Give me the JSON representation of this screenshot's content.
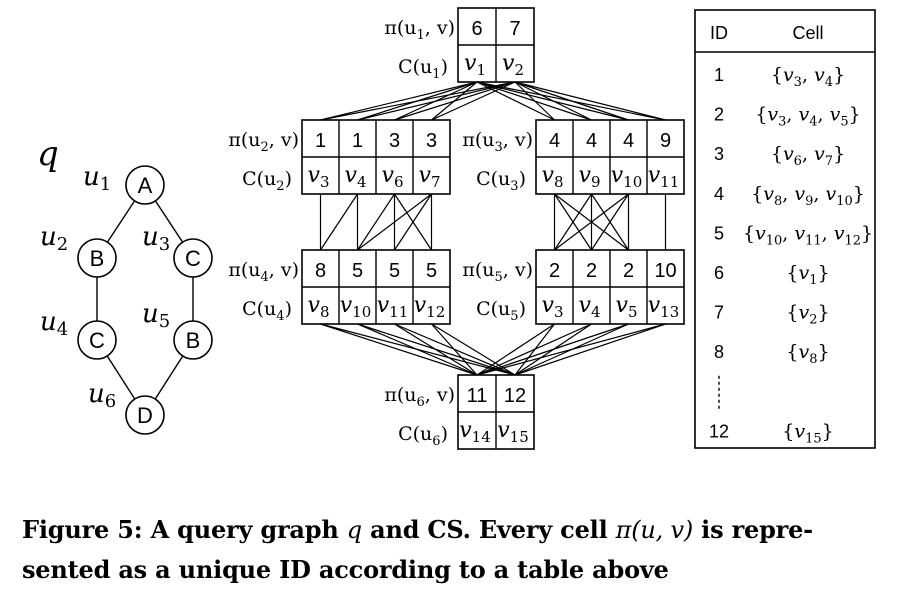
{
  "query_graph": {
    "label": "q",
    "vertices": [
      {
        "id": "u1",
        "name": "u",
        "sub": "1",
        "label": "A"
      },
      {
        "id": "u2",
        "name": "u",
        "sub": "2",
        "label": "B"
      },
      {
        "id": "u3",
        "name": "u",
        "sub": "3",
        "label": "C"
      },
      {
        "id": "u4",
        "name": "u",
        "sub": "4",
        "label": "C"
      },
      {
        "id": "u5",
        "name": "u",
        "sub": "5",
        "label": "B"
      },
      {
        "id": "u6",
        "name": "u",
        "sub": "6",
        "label": "D"
      }
    ],
    "edges": [
      [
        "u1",
        "u2"
      ],
      [
        "u1",
        "u3"
      ],
      [
        "u2",
        "u4"
      ],
      [
        "u3",
        "u5"
      ],
      [
        "u4",
        "u6"
      ],
      [
        "u5",
        "u6"
      ]
    ]
  },
  "cs": {
    "groups": [
      {
        "id": "u1",
        "pi_label": "π(u",
        "pi_sub": "1",
        "pi_end": ", v)",
        "c_label": "C(u",
        "c_sub": "1",
        "c_end": ")",
        "ids": [
          "6",
          "7"
        ],
        "cands": [
          [
            "v",
            "1"
          ],
          [
            "v",
            "2"
          ]
        ]
      },
      {
        "id": "u2",
        "pi_label": "π(u",
        "pi_sub": "2",
        "pi_end": ", v)",
        "c_label": "C(u",
        "c_sub": "2",
        "c_end": ")",
        "ids": [
          "1",
          "1",
          "3",
          "3"
        ],
        "cands": [
          [
            "v",
            "3"
          ],
          [
            "v",
            "4"
          ],
          [
            "v",
            "6"
          ],
          [
            "v",
            "7"
          ]
        ]
      },
      {
        "id": "u3",
        "pi_label": "π(u",
        "pi_sub": "3",
        "pi_end": ", v)",
        "c_label": "C(u",
        "c_sub": "3",
        "c_end": ")",
        "ids": [
          "4",
          "4",
          "4",
          "9"
        ],
        "cands": [
          [
            "v",
            "8"
          ],
          [
            "v",
            "9"
          ],
          [
            "v",
            "10"
          ],
          [
            "v",
            "11"
          ]
        ]
      },
      {
        "id": "u4",
        "pi_label": "π(u",
        "pi_sub": "4",
        "pi_end": ", v)",
        "c_label": "C(u",
        "c_sub": "4",
        "c_end": ")",
        "ids": [
          "8",
          "5",
          "5",
          "5"
        ],
        "cands": [
          [
            "v",
            "8"
          ],
          [
            "v",
            "10"
          ],
          [
            "v",
            "11"
          ],
          [
            "v",
            "12"
          ]
        ]
      },
      {
        "id": "u5",
        "pi_label": "π(u",
        "pi_sub": "5",
        "pi_end": ", v)",
        "c_label": "C(u",
        "c_sub": "5",
        "c_end": ")",
        "ids": [
          "2",
          "2",
          "2",
          "10"
        ],
        "cands": [
          [
            "v",
            "3"
          ],
          [
            "v",
            "4"
          ],
          [
            "v",
            "5"
          ],
          [
            "v",
            "13"
          ]
        ]
      },
      {
        "id": "u6",
        "pi_label": "π(u",
        "pi_sub": "6",
        "pi_end": ", v)",
        "c_label": "C(u",
        "c_sub": "6",
        "c_end": ")",
        "ids": [
          "11",
          "12"
        ],
        "cands": [
          [
            "v",
            "14"
          ],
          [
            "v",
            "15"
          ]
        ]
      }
    ]
  },
  "id_table": {
    "headers": [
      "ID",
      "Cell"
    ],
    "rows": [
      {
        "id": "1",
        "cell": [
          "3",
          "4"
        ]
      },
      {
        "id": "2",
        "cell": [
          "3",
          "4",
          "5"
        ]
      },
      {
        "id": "3",
        "cell": [
          "6",
          "7"
        ]
      },
      {
        "id": "4",
        "cell": [
          "8",
          "9",
          "10"
        ]
      },
      {
        "id": "5",
        "cell": [
          "10",
          "11",
          "12"
        ]
      },
      {
        "id": "6",
        "cell": [
          "1"
        ]
      },
      {
        "id": "7",
        "cell": [
          "2"
        ]
      },
      {
        "id": "8",
        "cell": [
          "8"
        ]
      },
      {
        "id": "",
        "cell": [],
        "ellipsis": true
      },
      {
        "id": "12",
        "cell": [
          "15"
        ]
      }
    ]
  },
  "caption": {
    "prefix": "Figure 5: A query graph ",
    "q": "q",
    "middle": " and CS. Every cell ",
    "pi": "π(u, v)",
    "suffix": " is repre-",
    "line2": "sented as a unique ID according to a table above"
  }
}
